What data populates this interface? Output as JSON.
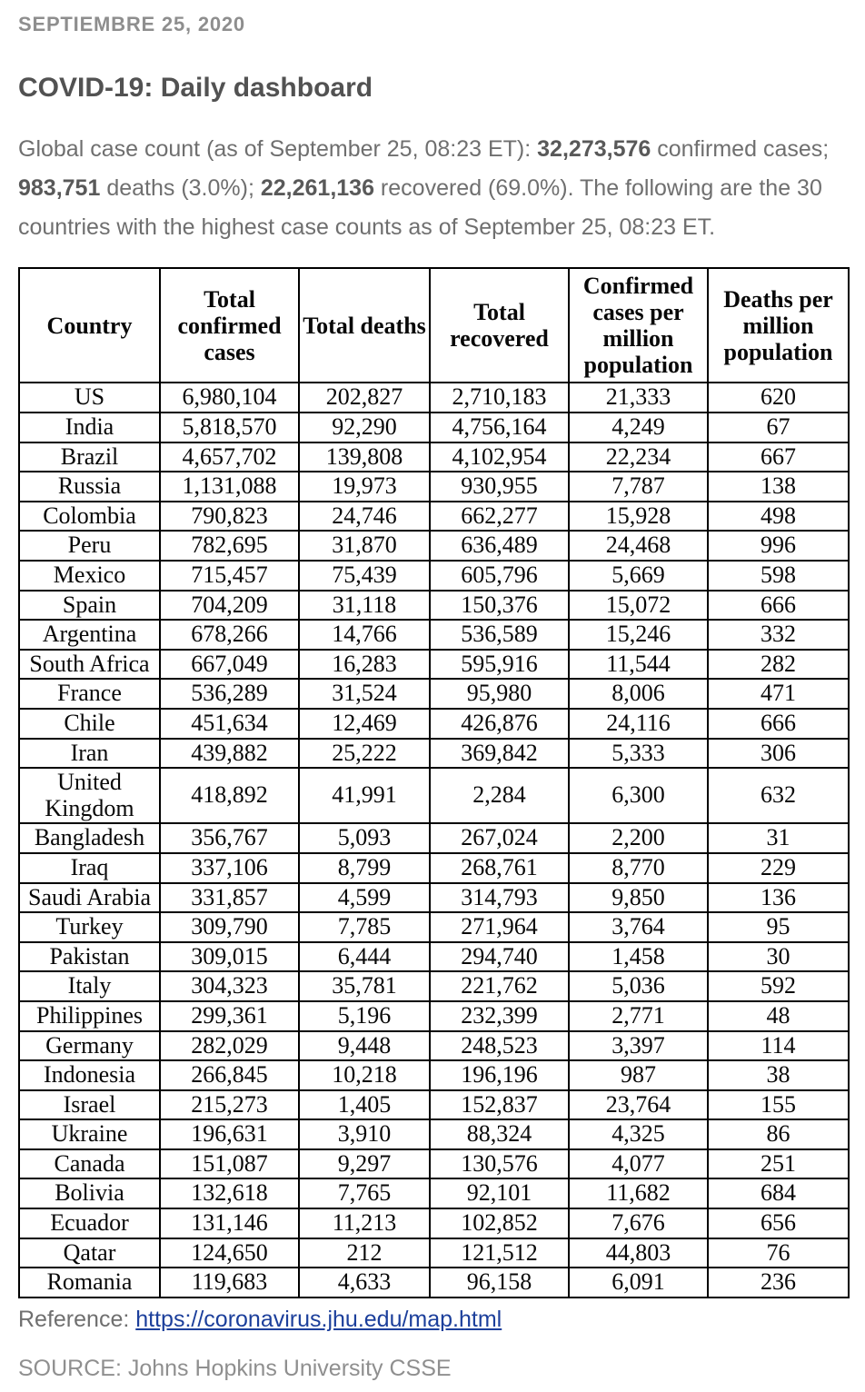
{
  "header": {
    "date": "SEPTIEMBRE 25, 2020",
    "title": "COVID-19: Daily dashboard"
  },
  "intro": {
    "part1": "Global case count (as of September 25, 08:23 ET): ",
    "confirmed_total": "32,273,576",
    "part2": " confirmed cases; ",
    "deaths_total": "983,751",
    "part3": " deaths (3.0%); ",
    "recovered_total": "22,261,136",
    "part4": " recovered (69.0%). The following are the 30 countries with the highest case counts as of September 25, 08:23 ET."
  },
  "table": {
    "headers": [
      "Country",
      "Total confirmed cases",
      "Total deaths",
      "Total recovered",
      "Confirmed cases per million population",
      "Deaths per million population"
    ],
    "rows": [
      [
        "US",
        "6,980,104",
        "202,827",
        "2,710,183",
        "21,333",
        "620"
      ],
      [
        "India",
        "5,818,570",
        "92,290",
        "4,756,164",
        "4,249",
        "67"
      ],
      [
        "Brazil",
        "4,657,702",
        "139,808",
        "4,102,954",
        "22,234",
        "667"
      ],
      [
        "Russia",
        "1,131,088",
        "19,973",
        "930,955",
        "7,787",
        "138"
      ],
      [
        "Colombia",
        "790,823",
        "24,746",
        "662,277",
        "15,928",
        "498"
      ],
      [
        "Peru",
        "782,695",
        "31,870",
        "636,489",
        "24,468",
        "996"
      ],
      [
        "Mexico",
        "715,457",
        "75,439",
        "605,796",
        "5,669",
        "598"
      ],
      [
        "Spain",
        "704,209",
        "31,118",
        "150,376",
        "15,072",
        "666"
      ],
      [
        "Argentina",
        "678,266",
        "14,766",
        "536,589",
        "15,246",
        "332"
      ],
      [
        "South Africa",
        "667,049",
        "16,283",
        "595,916",
        "11,544",
        "282"
      ],
      [
        "France",
        "536,289",
        "31,524",
        "95,980",
        "8,006",
        "471"
      ],
      [
        "Chile",
        "451,634",
        "12,469",
        "426,876",
        "24,116",
        "666"
      ],
      [
        "Iran",
        "439,882",
        "25,222",
        "369,842",
        "5,333",
        "306"
      ],
      [
        "United Kingdom",
        "418,892",
        "41,991",
        "2,284",
        "6,300",
        "632"
      ],
      [
        "Bangladesh",
        "356,767",
        "5,093",
        "267,024",
        "2,200",
        "31"
      ],
      [
        "Iraq",
        "337,106",
        "8,799",
        "268,761",
        "8,770",
        "229"
      ],
      [
        "Saudi Arabia",
        "331,857",
        "4,599",
        "314,793",
        "9,850",
        "136"
      ],
      [
        "Turkey",
        "309,790",
        "7,785",
        "271,964",
        "3,764",
        "95"
      ],
      [
        "Pakistan",
        "309,015",
        "6,444",
        "294,740",
        "1,458",
        "30"
      ],
      [
        "Italy",
        "304,323",
        "35,781",
        "221,762",
        "5,036",
        "592"
      ],
      [
        "Philippines",
        "299,361",
        "5,196",
        "232,399",
        "2,771",
        "48"
      ],
      [
        "Germany",
        "282,029",
        "9,448",
        "248,523",
        "3,397",
        "114"
      ],
      [
        "Indonesia",
        "266,845",
        "10,218",
        "196,196",
        "987",
        "38"
      ],
      [
        "Israel",
        "215,273",
        "1,405",
        "152,837",
        "23,764",
        "155"
      ],
      [
        "Ukraine",
        "196,631",
        "3,910",
        "88,324",
        "4,325",
        "86"
      ],
      [
        "Canada",
        "151,087",
        "9,297",
        "130,576",
        "4,077",
        "251"
      ],
      [
        "Bolivia",
        "132,618",
        "7,765",
        "92,101",
        "11,682",
        "684"
      ],
      [
        "Ecuador",
        "131,146",
        "11,213",
        "102,852",
        "7,676",
        "656"
      ],
      [
        "Qatar",
        "124,650",
        "212",
        "121,512",
        "44,803",
        "76"
      ],
      [
        "Romania",
        "119,683",
        "4,633",
        "96,158",
        "6,091",
        "236"
      ]
    ]
  },
  "footer": {
    "reference_label": "Reference: ",
    "reference_link": "https://coronavirus.jhu.edu/map.html",
    "source": "SOURCE: Johns Hopkins University CSSE"
  },
  "colors": {
    "link": "#1c3f9b",
    "table_border": "#000000",
    "body_text": "#6f6f6f",
    "date_text": "#8e8e8e",
    "title_text": "#525252"
  }
}
